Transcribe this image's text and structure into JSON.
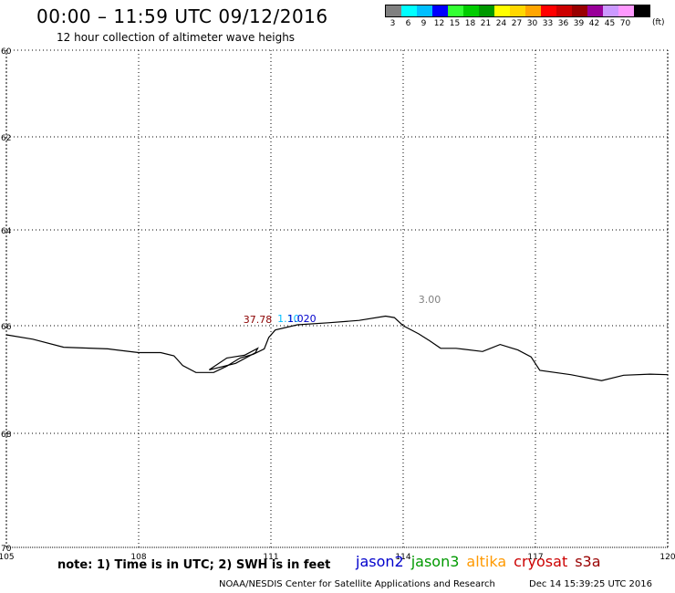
{
  "header": {
    "title": "00:00 – 11:59 UTC 09/12/2016",
    "subtitle": "12 hour collection of altimeter wave heighs"
  },
  "legend": {
    "colors": [
      "#808080",
      "#00ffff",
      "#00bfff",
      "#0000ff",
      "#33ff33",
      "#00cc00",
      "#009900",
      "#ffff00",
      "#ffd700",
      "#ffa500",
      "#ff0000",
      "#cc0000",
      "#990000",
      "#990099",
      "#cc99ff",
      "#ff99ff",
      "#000000"
    ],
    "labels": [
      "3",
      "6",
      "9",
      "12",
      "15",
      "18",
      "21",
      "24",
      "27",
      "30",
      "33",
      "36",
      "39",
      "42",
      "45",
      "70"
    ],
    "unit": "(ft)"
  },
  "axes": {
    "x_ticks": [
      "105",
      "108",
      "111",
      "114",
      "117",
      "120"
    ],
    "y_ticks": [
      "60",
      "62",
      "64",
      "66",
      "68",
      "70"
    ]
  },
  "chart_data": {
    "type": "map",
    "x": {
      "range": [
        105,
        120
      ],
      "ticks": [
        105,
        108,
        111,
        114,
        117,
        120
      ]
    },
    "y": {
      "range": [
        -70,
        -60
      ],
      "ticks": [
        -60,
        -62,
        -64,
        -66,
        -68,
        -70
      ],
      "tick_labels": [
        "60",
        "62",
        "64",
        "66",
        "68",
        "70"
      ]
    },
    "grid": true,
    "coastline": [
      [
        105.0,
        -66.17
      ],
      [
        105.6,
        -66.25
      ],
      [
        106.3,
        -66.4
      ],
      [
        107.3,
        -66.43
      ],
      [
        108.0,
        -66.5
      ],
      [
        108.5,
        -66.5
      ],
      [
        108.8,
        -66.56
      ],
      [
        109.0,
        -66.74
      ],
      [
        109.3,
        -66.87
      ],
      [
        109.7,
        -66.87
      ],
      [
        110.0,
        -66.75
      ],
      [
        110.3,
        -66.6
      ],
      [
        110.6,
        -66.53
      ],
      [
        110.85,
        -66.43
      ],
      [
        110.95,
        -66.22
      ],
      [
        111.1,
        -66.08
      ],
      [
        111.6,
        -65.98
      ],
      [
        112.3,
        -65.94
      ],
      [
        113.0,
        -65.89
      ],
      [
        113.6,
        -65.8
      ],
      [
        113.8,
        -65.83
      ],
      [
        114.0,
        -66.0
      ],
      [
        114.35,
        -66.15
      ],
      [
        114.6,
        -66.28
      ],
      [
        114.85,
        -66.42
      ],
      [
        115.2,
        -66.42
      ],
      [
        115.8,
        -66.48
      ],
      [
        116.2,
        -66.35
      ],
      [
        116.6,
        -66.45
      ],
      [
        116.9,
        -66.58
      ],
      [
        117.1,
        -66.83
      ],
      [
        117.8,
        -66.91
      ],
      [
        118.5,
        -67.02
      ],
      [
        119.0,
        -66.92
      ],
      [
        119.6,
        -66.9
      ],
      [
        120.0,
        -66.91
      ]
    ],
    "islands": [
      [
        [
          109.6,
          -66.82
        ],
        [
          110.0,
          -66.6
        ],
        [
          110.4,
          -66.55
        ],
        [
          110.7,
          -66.42
        ],
        [
          110.65,
          -66.5
        ],
        [
          110.2,
          -66.7
        ],
        [
          109.6,
          -66.82
        ]
      ]
    ],
    "observations": [
      {
        "lon": 110.7,
        "lat": -65.94,
        "value": "37.78",
        "color": "#8b0000"
      },
      {
        "lon": 111.4,
        "lat": -65.92,
        "value": "1.10",
        "color": "#00bfff"
      },
      {
        "lon": 111.7,
        "lat": -65.92,
        "value": "1.020",
        "color": "#0000cc"
      },
      {
        "lon": 114.6,
        "lat": -65.52,
        "value": "3.00",
        "color": "#808080"
      }
    ]
  },
  "footer": {
    "note": "note: 1) Time is in UTC; 2) SWH is in feet",
    "missions": [
      {
        "name": "jason2",
        "color": "#0000cc"
      },
      {
        "name": "jason3",
        "color": "#009900"
      },
      {
        "name": "altika",
        "color": "#ff9900"
      },
      {
        "name": "cryosat",
        "color": "#cc0000"
      },
      {
        "name": "s3a",
        "color": "#990000"
      }
    ],
    "credit": "NOAA/NESDIS Center for Satellite Applications and Research",
    "timestamp": "Dec 14 15:39:25 UTC 2016"
  }
}
